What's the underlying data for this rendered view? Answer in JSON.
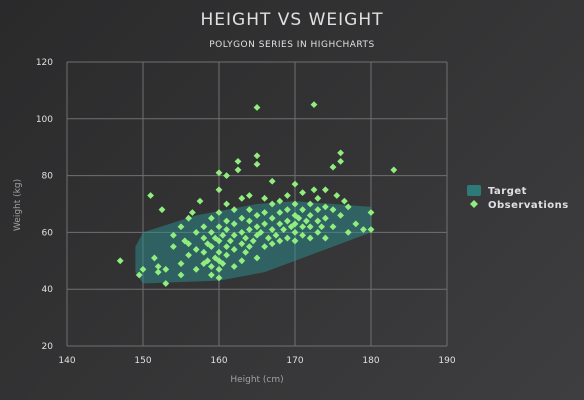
{
  "chart_data": {
    "type": "scatter",
    "title": "HEIGHT VS WEIGHT",
    "subtitle": "POLYGON SERIES IN HIGHCHARTS",
    "xlabel": "Height (cm)",
    "ylabel": "Weight (kg)",
    "xlim": [
      140,
      190
    ],
    "ylim": [
      20,
      120
    ],
    "xticks": [
      140,
      150,
      160,
      170,
      180,
      190
    ],
    "yticks": [
      20,
      40,
      60,
      80,
      100,
      120
    ],
    "grid": true,
    "legend_position": "right",
    "colors": {
      "target": "#2b908f",
      "observations": "#90ee7e",
      "grid": "#707073",
      "text": "#e0e0e3"
    },
    "series": [
      {
        "name": "Target",
        "kind": "polygon",
        "points": [
          [
            149,
            55
          ],
          [
            150,
            60
          ],
          [
            157,
            66
          ],
          [
            165,
            70
          ],
          [
            170,
            71
          ],
          [
            180,
            69
          ],
          [
            180,
            60
          ],
          [
            173,
            53
          ],
          [
            166,
            46
          ],
          [
            160,
            43
          ],
          [
            150,
            42
          ],
          [
            149,
            46
          ]
        ]
      },
      {
        "name": "Observations",
        "kind": "scatter",
        "points": [
          [
            147,
            50
          ],
          [
            149.5,
            45
          ],
          [
            150,
            47
          ],
          [
            151,
            73
          ],
          [
            151.5,
            51
          ],
          [
            152,
            46
          ],
          [
            152,
            48
          ],
          [
            152.5,
            68
          ],
          [
            153,
            42
          ],
          [
            153,
            47
          ],
          [
            154,
            55
          ],
          [
            154,
            59
          ],
          [
            155,
            45
          ],
          [
            155,
            49
          ],
          [
            155,
            62
          ],
          [
            155.5,
            57
          ],
          [
            156,
            52
          ],
          [
            156,
            56
          ],
          [
            156,
            65
          ],
          [
            156.5,
            67
          ],
          [
            157,
            47
          ],
          [
            157,
            54
          ],
          [
            157,
            60
          ],
          [
            157.5,
            71
          ],
          [
            158,
            49
          ],
          [
            158,
            53
          ],
          [
            158,
            58
          ],
          [
            158,
            62
          ],
          [
            158.5,
            50
          ],
          [
            158.5,
            56
          ],
          [
            159,
            45
          ],
          [
            159,
            48
          ],
          [
            159,
            55
          ],
          [
            159,
            60
          ],
          [
            159,
            65
          ],
          [
            159.5,
            51
          ],
          [
            159.5,
            58
          ],
          [
            160,
            44
          ],
          [
            160,
            47
          ],
          [
            160,
            50
          ],
          [
            160,
            53
          ],
          [
            160,
            57
          ],
          [
            160,
            62
          ],
          [
            160,
            67
          ],
          [
            160,
            75
          ],
          [
            160,
            81
          ],
          [
            160.5,
            49
          ],
          [
            160.5,
            59
          ],
          [
            161,
            52
          ],
          [
            161,
            55
          ],
          [
            161,
            61
          ],
          [
            161,
            64
          ],
          [
            161,
            70
          ],
          [
            161,
            80
          ],
          [
            161.5,
            57
          ],
          [
            162,
            48
          ],
          [
            162,
            54
          ],
          [
            162,
            59
          ],
          [
            162,
            63
          ],
          [
            162,
            68
          ],
          [
            162.5,
            82
          ],
          [
            162.5,
            85
          ],
          [
            163,
            50
          ],
          [
            163,
            56
          ],
          [
            163,
            60
          ],
          [
            163,
            65
          ],
          [
            163,
            72
          ],
          [
            163.5,
            53
          ],
          [
            163.5,
            58
          ],
          [
            164,
            55
          ],
          [
            164,
            61
          ],
          [
            164,
            64
          ],
          [
            164,
            68
          ],
          [
            164,
            73
          ],
          [
            164.5,
            57
          ],
          [
            165,
            51
          ],
          [
            165,
            59
          ],
          [
            165,
            62
          ],
          [
            165,
            66
          ],
          [
            165,
            84
          ],
          [
            165,
            87
          ],
          [
            165,
            104
          ],
          [
            165.5,
            60
          ],
          [
            166,
            55
          ],
          [
            166,
            63
          ],
          [
            166,
            67
          ],
          [
            166,
            72
          ],
          [
            166.5,
            58
          ],
          [
            167,
            56
          ],
          [
            167,
            61
          ],
          [
            167,
            65
          ],
          [
            167,
            70
          ],
          [
            167,
            78
          ],
          [
            167.5,
            59
          ],
          [
            168,
            57
          ],
          [
            168,
            63
          ],
          [
            168,
            67
          ],
          [
            168,
            71
          ],
          [
            168.5,
            61
          ],
          [
            169,
            58
          ],
          [
            169,
            64
          ],
          [
            169,
            68
          ],
          [
            169,
            73
          ],
          [
            169.5,
            62
          ],
          [
            170,
            57
          ],
          [
            170,
            60
          ],
          [
            170,
            63
          ],
          [
            170,
            66
          ],
          [
            170,
            70
          ],
          [
            170,
            77
          ],
          [
            170.5,
            65
          ],
          [
            171,
            59
          ],
          [
            171,
            62
          ],
          [
            171,
            68
          ],
          [
            171,
            74
          ],
          [
            171.5,
            64
          ],
          [
            172,
            58
          ],
          [
            172,
            62
          ],
          [
            172,
            66
          ],
          [
            172,
            70
          ],
          [
            172.5,
            75
          ],
          [
            172.5,
            105
          ],
          [
            173,
            60
          ],
          [
            173,
            64
          ],
          [
            173,
            68
          ],
          [
            173,
            72
          ],
          [
            173.5,
            62
          ],
          [
            174,
            58
          ],
          [
            174,
            65
          ],
          [
            174,
            69
          ],
          [
            174,
            75
          ],
          [
            175,
            62
          ],
          [
            175,
            68
          ],
          [
            175,
            83
          ],
          [
            175.5,
            73
          ],
          [
            176,
            66
          ],
          [
            176,
            85
          ],
          [
            176,
            88
          ],
          [
            176.5,
            71
          ],
          [
            177,
            60
          ],
          [
            177,
            69
          ],
          [
            178,
            63
          ],
          [
            179,
            61
          ],
          [
            180,
            67
          ],
          [
            180,
            61
          ],
          [
            183,
            82
          ]
        ]
      }
    ]
  }
}
